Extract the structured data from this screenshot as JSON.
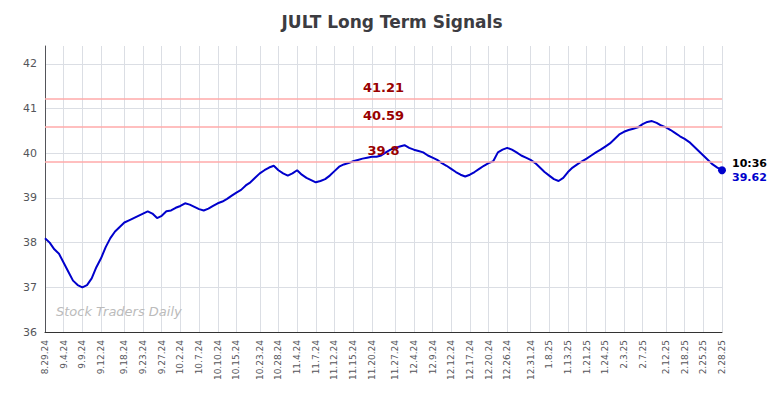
{
  "chart_data": {
    "type": "line",
    "title": "JULT Long Term Signals",
    "categories": [
      "8.29.24",
      null,
      null,
      null,
      "9.4.24",
      null,
      null,
      null,
      "9.9.24",
      null,
      null,
      null,
      "9.12.24",
      null,
      null,
      null,
      null,
      "9.18.24",
      null,
      null,
      null,
      "9.23.24",
      null,
      null,
      null,
      "9.27.24",
      null,
      null,
      null,
      "10.2.24",
      null,
      null,
      null,
      "10.7.24",
      null,
      null,
      null,
      "10.10.24",
      null,
      null,
      null,
      "10.15.24",
      null,
      null,
      null,
      null,
      "10.23.24",
      null,
      null,
      null,
      "10.28.24",
      null,
      null,
      null,
      "11.4.24",
      null,
      null,
      null,
      "11.7.24",
      null,
      null,
      null,
      "11.12.24",
      null,
      null,
      null,
      "11.15.24",
      null,
      null,
      null,
      "11.20.24",
      null,
      null,
      null,
      null,
      "11.27.24",
      null,
      null,
      null,
      "12.4.24",
      null,
      null,
      null,
      "12.9.24",
      null,
      null,
      null,
      "12.12.24",
      null,
      null,
      null,
      "12.17.24",
      null,
      null,
      null,
      "12.20.24",
      null,
      null,
      null,
      "12.26.24",
      null,
      null,
      null,
      null,
      "12.31.24",
      null,
      null,
      null,
      "1.8.25",
      null,
      null,
      null,
      "1.13.25",
      null,
      null,
      null,
      "1.21.25",
      null,
      null,
      null,
      "1.24.25",
      null,
      null,
      null,
      "2.3.25",
      null,
      null,
      null,
      "2.7.25",
      null,
      null,
      null,
      null,
      "2.12.25",
      null,
      null,
      null,
      "2.18.25",
      null,
      null,
      null,
      "2.25.25",
      null,
      null,
      null,
      "2.28.25"
    ],
    "values": [
      38.1,
      38.0,
      37.85,
      37.75,
      37.55,
      37.35,
      37.15,
      37.05,
      37.0,
      37.05,
      37.2,
      37.45,
      37.65,
      37.9,
      38.1,
      38.25,
      38.35,
      38.45,
      38.5,
      38.55,
      38.6,
      38.65,
      38.7,
      38.65,
      38.55,
      38.6,
      38.7,
      38.72,
      38.78,
      38.82,
      38.88,
      38.85,
      38.8,
      38.75,
      38.72,
      38.76,
      38.82,
      38.88,
      38.92,
      38.98,
      39.05,
      39.12,
      39.18,
      39.28,
      39.35,
      39.45,
      39.55,
      39.62,
      39.68,
      39.72,
      39.62,
      39.55,
      39.5,
      39.55,
      39.62,
      39.52,
      39.45,
      39.4,
      39.35,
      39.38,
      39.42,
      39.5,
      39.6,
      39.7,
      39.75,
      39.78,
      39.82,
      39.85,
      39.88,
      39.9,
      39.92,
      39.92,
      39.95,
      40.02,
      40.08,
      40.12,
      40.15,
      40.18,
      40.12,
      40.08,
      40.05,
      40.02,
      39.95,
      39.9,
      39.85,
      39.78,
      39.72,
      39.65,
      39.58,
      39.52,
      39.48,
      39.52,
      39.58,
      39.65,
      39.72,
      39.78,
      39.82,
      40.02,
      40.08,
      40.12,
      40.08,
      40.02,
      39.95,
      39.9,
      39.85,
      39.78,
      39.68,
      39.58,
      39.5,
      39.42,
      39.38,
      39.45,
      39.58,
      39.68,
      39.75,
      39.82,
      39.88,
      39.95,
      40.02,
      40.08,
      40.15,
      40.22,
      40.32,
      40.42,
      40.48,
      40.52,
      40.55,
      40.58,
      40.65,
      40.7,
      40.72,
      40.68,
      40.62,
      40.58,
      40.52,
      40.45,
      40.38,
      40.32,
      40.25,
      40.15,
      40.05,
      39.95,
      39.85,
      39.75,
      39.68,
      39.62
    ],
    "color": "#0000cc",
    "ylim": [
      36,
      42.4
    ],
    "yticks": [
      36,
      37,
      38,
      39,
      40,
      41,
      42
    ],
    "grid": true,
    "reference_lines": {
      "values": [
        41.21,
        40.59,
        39.8
      ],
      "color": "#ffaaaa",
      "label_color": "#990000"
    },
    "last_point": {
      "labels": [
        "10:36",
        "39.62"
      ],
      "color": "#0000cc"
    },
    "watermark": {
      "text": "Stock Traders Daily",
      "color": "#bbbbbb"
    }
  }
}
